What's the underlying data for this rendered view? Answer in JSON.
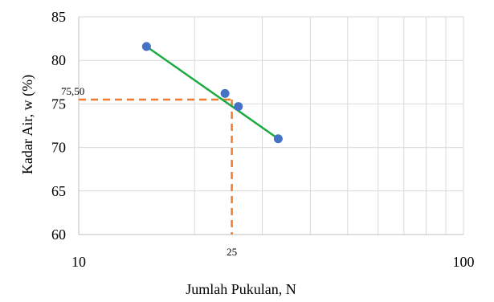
{
  "chart_data": {
    "type": "scatter",
    "title": "",
    "xlabel": "Jumlah Pukulan, N",
    "ylabel": "Kadar Air, w (%)",
    "x_scale": "log",
    "xlim": [
      10,
      100
    ],
    "ylim": [
      60,
      85
    ],
    "x_ticks": [
      10,
      20,
      30,
      40,
      50,
      60,
      70,
      80,
      90,
      100
    ],
    "x_tick_labels": [
      {
        "value": 10,
        "label": "10"
      },
      {
        "value": 100,
        "label": "100"
      }
    ],
    "y_ticks": [
      60,
      65,
      70,
      75,
      80,
      85
    ],
    "y_tick_labels": [
      "60",
      "65",
      "70",
      "75",
      "80",
      "85"
    ],
    "grid": true,
    "series": [
      {
        "type": "scatter",
        "points": [
          {
            "x": 15,
            "y": 81.6
          },
          {
            "x": 24,
            "y": 76.2
          },
          {
            "x": 26,
            "y": 74.7
          },
          {
            "x": 33,
            "y": 71.0
          }
        ]
      },
      {
        "type": "line",
        "points": [
          {
            "x": 15,
            "y": 81.6
          },
          {
            "x": 33,
            "y": 71.0
          }
        ]
      }
    ],
    "annotations": [
      {
        "type": "reference",
        "x": 25,
        "y": 75.5,
        "x_label": "25",
        "y_label": "75,50"
      }
    ],
    "colors": {
      "points": "#4472c4",
      "trend_line": "#1aab40",
      "reference": "#ed7d31",
      "grid": "#d9d9d9",
      "axis": "#bfbfbf"
    }
  }
}
